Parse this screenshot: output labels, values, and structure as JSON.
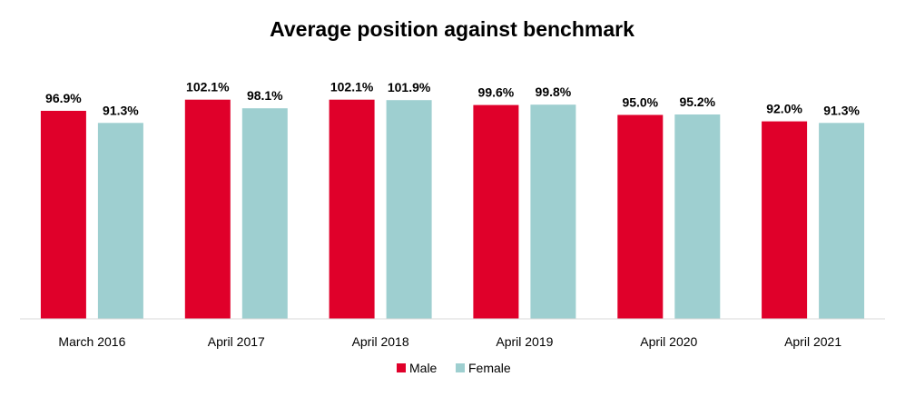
{
  "chart_data": {
    "type": "bar",
    "title": "Average position against benchmark",
    "categories": [
      "March 2016",
      "April 2017",
      "April 2018",
      "April 2019",
      "April 2020",
      "April 2021"
    ],
    "series": [
      {
        "name": "Male",
        "color": "#e0002a",
        "values": [
          96.9,
          102.1,
          102.1,
          99.6,
          95.0,
          92.0
        ],
        "labels": [
          "96.9%",
          "102.1%",
          "102.1%",
          "99.6%",
          "95.0%",
          "92.0%"
        ]
      },
      {
        "name": "Female",
        "color": "#9ecfd0",
        "values": [
          91.3,
          98.1,
          101.9,
          99.8,
          95.2,
          91.3
        ],
        "labels": [
          "91.3%",
          "98.1%",
          "101.9%",
          "99.8%",
          "95.2%",
          "91.3%"
        ]
      }
    ],
    "xlabel": "",
    "ylabel": "",
    "ylim": [
      0,
      105
    ],
    "grid": false,
    "legend_position": "bottom",
    "axis_color": "#d9d9d9"
  }
}
